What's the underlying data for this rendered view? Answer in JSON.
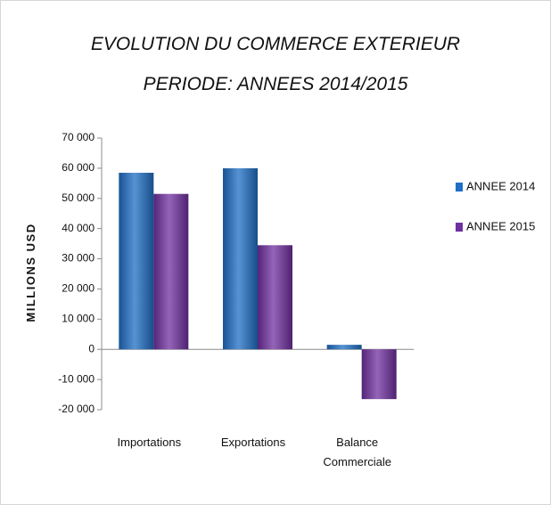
{
  "chart_data": {
    "type": "bar",
    "title": "EVOLUTION  DU  COMMERCE  EXTERIEUR",
    "subtitle": "PERIODE: ANNEES  2014/2015",
    "ylabel": "MILLIONS USD",
    "xlabel": "",
    "ylim": [
      -20000,
      70000
    ],
    "yticks": [
      70000,
      60000,
      50000,
      40000,
      30000,
      20000,
      10000,
      0,
      -10000,
      -20000
    ],
    "ytick_labels": [
      "70 000",
      "60 000",
      "50 000",
      "40 000",
      "30 000",
      "20 000",
      "10 000",
      "0",
      "-10 000",
      "-20 000"
    ],
    "categories": [
      [
        "Importations"
      ],
      [
        "Exportations"
      ],
      [
        "Balance",
        "Commerciale"
      ]
    ],
    "series": [
      {
        "name": "ANNEE 2014",
        "color": "#1F6FC5",
        "values": [
          58500,
          60000,
          1500
        ]
      },
      {
        "name": "ANNEE 2015",
        "color": "#7030A0",
        "values": [
          51500,
          34500,
          -16500
        ]
      }
    ],
    "legend": "right",
    "grid": false
  }
}
